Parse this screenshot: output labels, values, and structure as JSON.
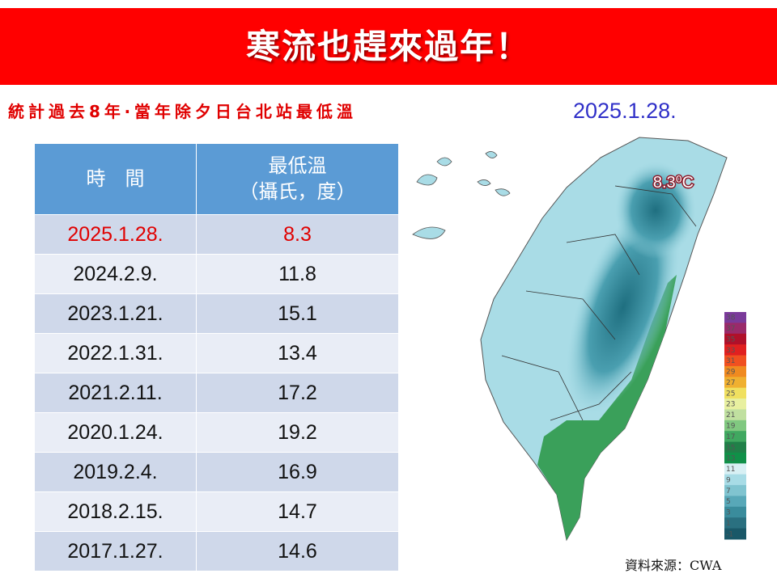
{
  "header": {
    "title": "寒流也趕來過年！"
  },
  "subtitle": "統計過去8年‧當年除夕日台北站最低溫",
  "table": {
    "headers": [
      "時　間",
      "最低溫\n（攝氏，度）"
    ],
    "rows": [
      [
        "2025.1.28.",
        "8.3"
      ],
      [
        "2024.2.9.",
        "11.8"
      ],
      [
        "2023.1.21.",
        "15.1"
      ],
      [
        "2022.1.31.",
        "13.4"
      ],
      [
        "2021.2.11.",
        "17.2"
      ],
      [
        "2020.1.24.",
        "19.2"
      ],
      [
        "2019.2.4.",
        "16.9"
      ],
      [
        "2018.2.15.",
        "14.7"
      ],
      [
        "2017.1.27.",
        "14.6"
      ]
    ]
  },
  "map": {
    "date": "2025.1.28.",
    "annotation": "8.3⁰C",
    "colorbar_labels": [
      "38",
      "37",
      "35",
      "33",
      "31",
      "29",
      "27",
      "25",
      "23",
      "21",
      "19",
      "17",
      "15",
      "13",
      "11",
      "9",
      "7",
      "5",
      "3",
      "1",
      "-1"
    ]
  },
  "source": "資料來源：CWA"
}
